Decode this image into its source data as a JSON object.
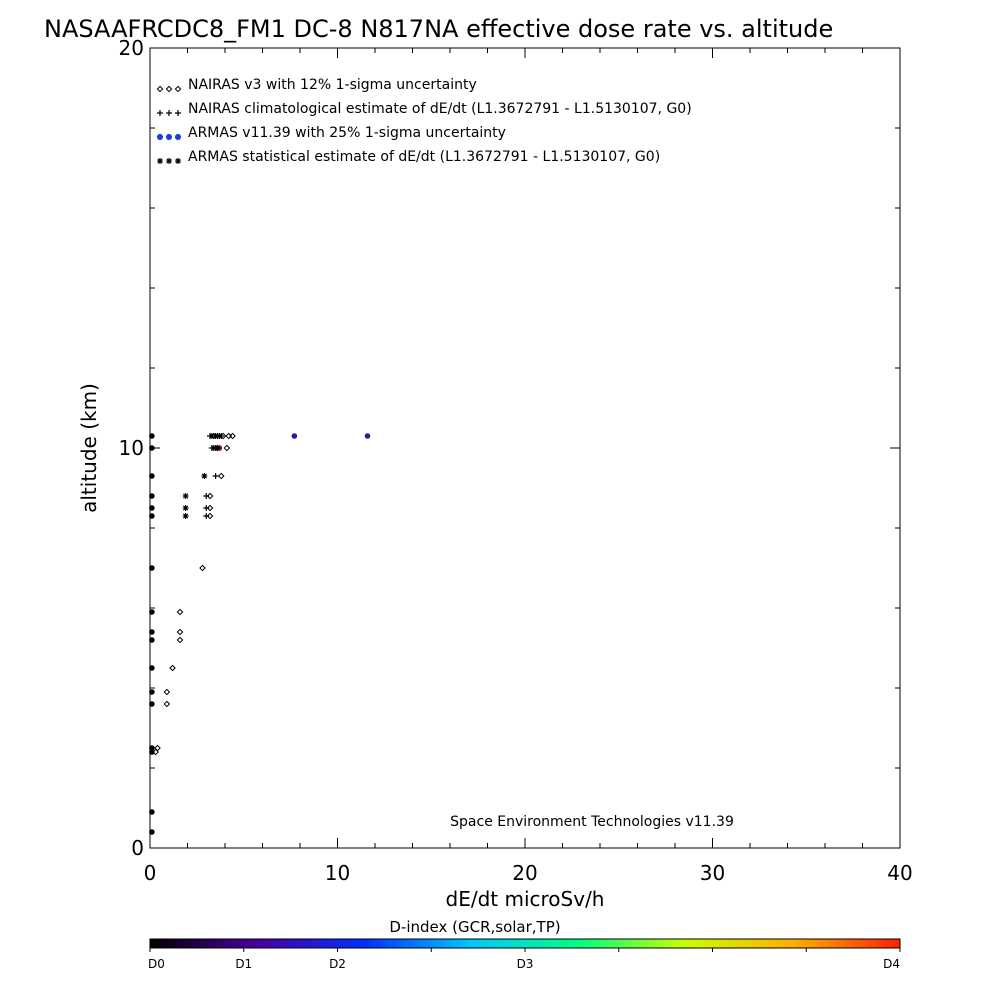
{
  "chart_data": {
    "type": "scatter",
    "title": "NASAAFRCDC8_FM1 DC-8   N817NA effective dose rate vs. altitude",
    "xlabel": "dE/dt microSv/h",
    "ylabel": "altitude (km)",
    "xlim": [
      0,
      40
    ],
    "ylim": [
      0,
      20
    ],
    "x_ticks": [
      0,
      10,
      20,
      30,
      40
    ],
    "y_ticks": [
      0,
      10,
      20
    ],
    "legend_position": "top-left",
    "annotation": "Space Environment Technologies v11.39",
    "series": [
      {
        "name": "NAIRAS v3 with 12% 1-sigma uncertainty",
        "marker": "diamond",
        "color": "#000000",
        "points": [
          [
            0.3,
            2.4
          ],
          [
            0.4,
            2.5
          ],
          [
            0.9,
            3.6
          ],
          [
            0.9,
            3.9
          ],
          [
            1.2,
            4.5
          ],
          [
            1.6,
            5.2
          ],
          [
            1.6,
            5.4
          ],
          [
            1.6,
            5.9
          ],
          [
            2.8,
            7.0
          ],
          [
            3.2,
            8.3
          ],
          [
            3.2,
            8.5
          ],
          [
            3.2,
            8.8
          ],
          [
            3.8,
            9.3
          ],
          [
            4.1,
            10.0
          ],
          [
            3.6,
            10.0
          ],
          [
            4.2,
            10.3
          ],
          [
            4.4,
            10.3
          ],
          [
            3.9,
            10.3
          ],
          [
            3.4,
            10.3
          ]
        ]
      },
      {
        "name": "NAIRAS climatological estimate of dE/dt (L1.3672791 - L1.5130107, G0)",
        "marker": "plus",
        "color": "#000000",
        "points": [
          [
            3.0,
            8.3
          ],
          [
            3.0,
            8.5
          ],
          [
            3.0,
            8.8
          ],
          [
            3.5,
            9.3
          ],
          [
            3.3,
            10.0
          ],
          [
            3.5,
            10.0
          ],
          [
            3.6,
            10.3
          ],
          [
            3.8,
            10.3
          ],
          [
            3.2,
            10.3
          ]
        ]
      },
      {
        "name": "ARMAS v11.39 with 25% 1-sigma uncertainty",
        "marker": "dot",
        "color": "#1a3fd8",
        "points": [
          [
            0.1,
            0.4
          ],
          [
            0.1,
            0.9
          ],
          [
            0.1,
            2.4
          ],
          [
            0.1,
            2.5
          ],
          [
            0.1,
            3.6
          ],
          [
            0.1,
            3.9
          ],
          [
            0.1,
            4.5
          ],
          [
            0.1,
            5.2
          ],
          [
            0.1,
            5.4
          ],
          [
            0.1,
            5.9
          ],
          [
            0.1,
            7.0
          ],
          [
            0.1,
            8.3
          ],
          [
            0.1,
            8.5
          ],
          [
            0.1,
            8.8
          ],
          [
            0.1,
            9.3
          ],
          [
            0.1,
            10.0
          ],
          [
            0.1,
            10.3
          ],
          [
            3.7,
            10.0
          ],
          [
            7.7,
            10.3
          ],
          [
            11.6,
            10.3
          ]
        ]
      },
      {
        "name": "ARMAS statistical estimate of dE/dt (L1.3672791 - L1.5130107, G0)",
        "marker": "asterisk",
        "color": "#000000",
        "points": [
          [
            1.9,
            8.3
          ],
          [
            1.9,
            8.5
          ],
          [
            1.9,
            8.8
          ],
          [
            2.9,
            9.3
          ],
          [
            3.4,
            10.0
          ],
          [
            3.6,
            10.0
          ],
          [
            3.5,
            10.3
          ],
          [
            3.7,
            10.3
          ],
          [
            3.3,
            10.3
          ]
        ]
      }
    ],
    "colorbar": {
      "label": "D-index (GCR,solar,TP)",
      "ticks": [
        {
          "label": "D0",
          "value": 0
        },
        {
          "label": "D1",
          "value": 1
        },
        {
          "label": "D2",
          "value": 2
        },
        {
          "label": "D3",
          "value": 3
        },
        {
          "label": "D4",
          "value": 4
        }
      ],
      "gradient": [
        "#000000",
        "#4a00a0",
        "#0030ff",
        "#00c8ff",
        "#00ff80",
        "#c8ff00",
        "#ffb000",
        "#ff2000"
      ]
    }
  }
}
